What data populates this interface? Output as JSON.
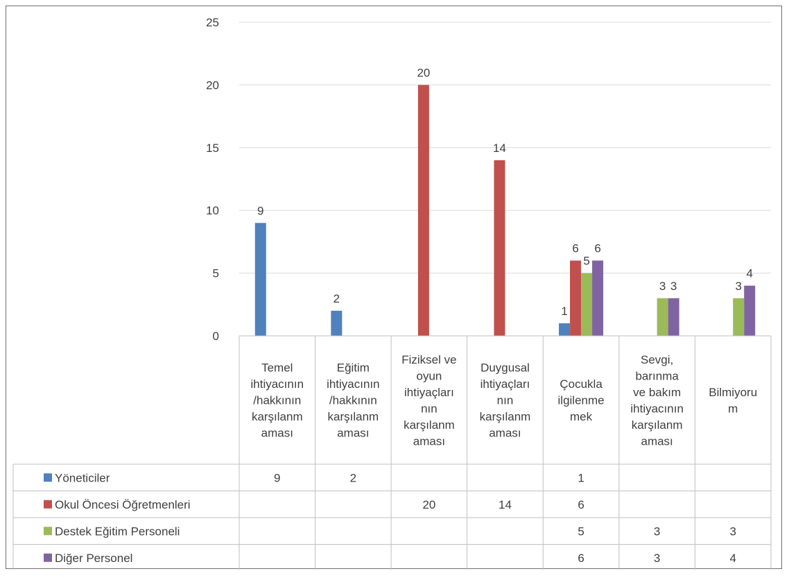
{
  "chart_data": {
    "type": "bar",
    "categories": [
      [
        "Temel",
        "ihtiyacının",
        "/hakkının",
        "karşılanm",
        "aması"
      ],
      [
        "Eğitim",
        "ihtiyacının",
        "/hakkının",
        "karşılanm",
        "aması"
      ],
      [
        "Fiziksel ve",
        "oyun",
        "ihtiyaçları",
        "nın",
        "karşılanm",
        "aması"
      ],
      [
        "Duygusal",
        "ihtiyaçları",
        "nın",
        "karşılanm",
        "aması"
      ],
      [
        "Çocukla",
        "ilgilenme",
        "mek"
      ],
      [
        "Sevgi,",
        "barınma",
        "ve bakım",
        "ihtiyacının",
        "karşılanm",
        "aması"
      ],
      [
        "Bilmiyoru",
        "m"
      ]
    ],
    "series": [
      {
        "name": "Yöneticiler",
        "color": "#4f81bd",
        "values": [
          9,
          2,
          null,
          null,
          1,
          null,
          null
        ]
      },
      {
        "name": "Okul Öncesi Öğretmenleri",
        "color": "#c0504d",
        "values": [
          null,
          null,
          20,
          14,
          6,
          null,
          null
        ]
      },
      {
        "name": "Destek Eğitim Personeli",
        "color": "#9bbb59",
        "values": [
          null,
          null,
          null,
          null,
          5,
          3,
          3
        ]
      },
      {
        "name": "Diğer Personel",
        "color": "#8064a2",
        "values": [
          null,
          null,
          null,
          null,
          6,
          3,
          4
        ]
      }
    ],
    "y_ticks": [
      0,
      5,
      10,
      15,
      20,
      25
    ],
    "ylim": [
      0,
      25
    ],
    "grid": true,
    "data_table": true,
    "legend": "data-table"
  }
}
